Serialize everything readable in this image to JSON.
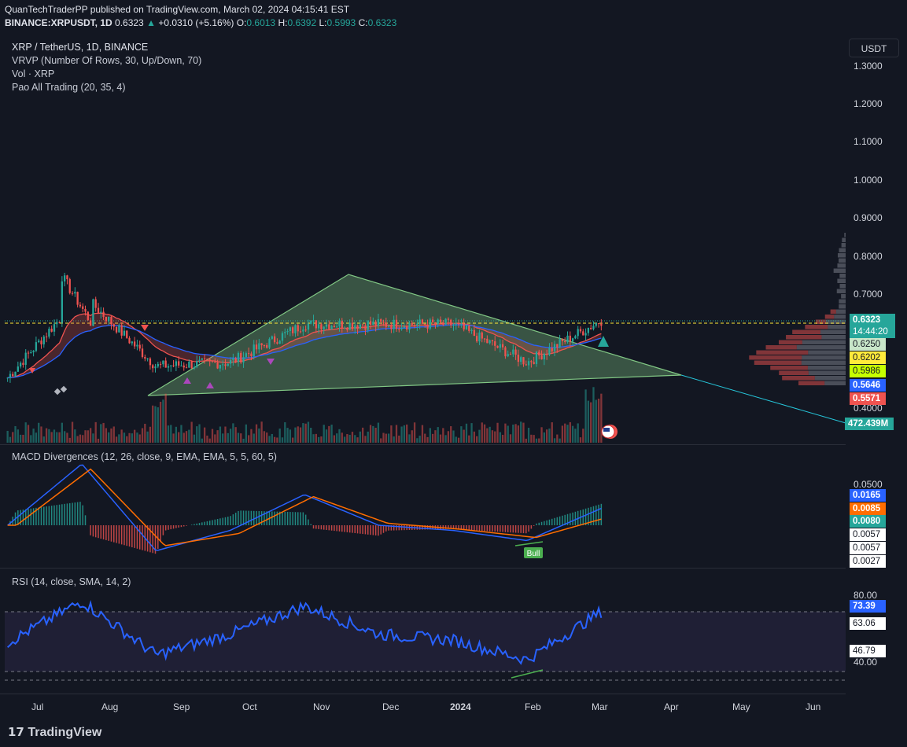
{
  "header": {
    "line1": "QuanTechTraderPP published on TradingView.com, March 02, 2024 04:15:41 EST",
    "symbol": "BINANCE:XRPUSDT, 1D",
    "last": "0.6323",
    "change": "+0.0310 (+5.16%)",
    "o_label": "O:",
    "o": "0.6013",
    "h_label": "H:",
    "h": "0.6392",
    "l_label": "L:",
    "l": "0.5993",
    "c_label": "C:",
    "c": "0.6323"
  },
  "legend": {
    "title": "XRP / TetherUS, 1D, BINANCE",
    "vrvp": "VRVP (Number Of Rows, 30, Up/Down, 70)",
    "vol": "Vol · XRP",
    "pao": "Pao All Trading (20, 35, 4)"
  },
  "macd_legend": "MACD Divergences  (12, 26, close, 9, EMA, EMA, 5, 5, 60, 5)",
  "rsi_legend": "RSI (14, close, SMA, 14, 2)",
  "currency_button": "USDT",
  "price_axis": [
    "1.3000",
    "1.2000",
    "1.1000",
    "1.0000",
    "0.9000",
    "0.8000",
    "0.7000",
    "0.4000"
  ],
  "price_labels": {
    "last": "0.6323",
    "countdown": "14:44:20",
    "p1": "0.6250",
    "p2": "0.6202",
    "p3": "0.5986",
    "p4": "0.5646",
    "p5": "0.5571",
    "volume": "472.439M"
  },
  "macd_axis": [
    "0.0500"
  ],
  "macd_labels": [
    "0.0165",
    "0.0085",
    "0.0080",
    "0.0057",
    "0.0057",
    "0.0027"
  ],
  "bull_label": "Bull",
  "rsi_axis": [
    "80.00",
    "40.00"
  ],
  "rsi_labels": [
    "73.39",
    "63.06",
    "46.79"
  ],
  "x_axis": [
    "Jul",
    "Aug",
    "Sep",
    "Oct",
    "Nov",
    "Dec",
    "2024",
    "Feb",
    "Mar",
    "Apr",
    "May",
    "Jun"
  ],
  "logo_text": "TradingView",
  "colors": {
    "up": "#26a69a",
    "down": "#ef5350",
    "macd": "#2962ff",
    "signal": "#ff6d00",
    "rsi": "#2962ff",
    "triangle": "#81c784",
    "bg": "#131722"
  },
  "chart_data": [
    {
      "type": "line",
      "title": "XRP / TetherUS, 1D, BINANCE",
      "x": [
        "Jul",
        "Aug",
        "Sep",
        "Oct",
        "Nov",
        "Dec",
        "2024",
        "Feb",
        "Mar"
      ],
      "series": [
        {
          "values": [
            0.48,
            0.7,
            0.51,
            0.52,
            0.62,
            0.62,
            0.62,
            0.52,
            0.63
          ]
        }
      ],
      "y_ticks": [
        "1.3000",
        "1.2000",
        "1.1000",
        "1.0000",
        "0.9000",
        "0.8000",
        "0.7000",
        "0.4000"
      ],
      "ylim": [
        0.4,
        1.3
      ]
    },
    {
      "type": "line",
      "title": "MACD Divergences  (12, 26, close, 9, EMA, EMA, 5, 5, 60, 5)",
      "x": [
        "Jul",
        "Aug",
        "Sep",
        "Oct",
        "Nov",
        "Dec",
        "2024",
        "Feb",
        "Mar"
      ],
      "series": [
        {
          "values": [
            0.0,
            0.06,
            -0.025,
            -0.005,
            0.03,
            0.0,
            -0.005,
            -0.015,
            0.0165
          ]
        },
        {
          "values": [
            0.0,
            0.055,
            -0.02,
            -0.008,
            0.028,
            0.002,
            -0.004,
            -0.012,
            0.0085
          ]
        }
      ]
    },
    {
      "type": "line",
      "title": "RSI (14, close, SMA, 14, 2)",
      "x": [
        "Jul",
        "Aug",
        "Sep",
        "Oct",
        "Nov",
        "Dec",
        "2024",
        "Feb",
        "Mar"
      ],
      "series": [
        {
          "values": [
            48,
            82,
            38,
            55,
            78,
            55,
            50,
            34,
            73.39
          ]
        }
      ],
      "y_ticks": [
        "80.00",
        "40.00"
      ],
      "ylim": [
        30,
        90
      ]
    }
  ]
}
